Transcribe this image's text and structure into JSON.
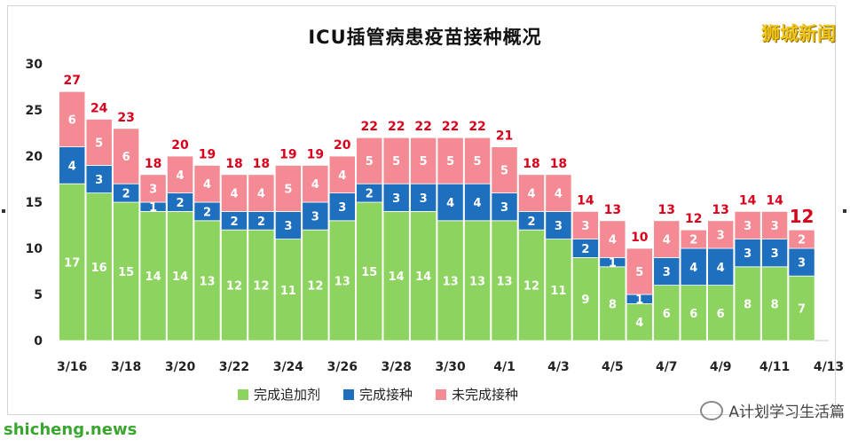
{
  "title": "ICU插管病患疫苗接种概况",
  "brand": "狮城新闻",
  "watermark": "shicheng.news",
  "wechat": "A计划学习生活篇",
  "legend": [
    "完成追加剂",
    "完成接种",
    "未完成接种"
  ],
  "colors": {
    "booster": "#8dd35f",
    "full": "#1f6fbf",
    "incomplete": "#f48a93",
    "total_label": "#d9001b"
  },
  "chart_data": {
    "type": "bar",
    "stacked": true,
    "title": "ICU插管病患疫苗接种概况",
    "x_tick_labels": [
      "3/16",
      "3/18",
      "3/20",
      "3/22",
      "3/24",
      "3/26",
      "3/28",
      "3/30",
      "4/1",
      "4/3",
      "4/5",
      "4/7",
      "4/9",
      "4/11",
      "4/13"
    ],
    "categories": [
      "3/16",
      "3/17",
      "3/18",
      "3/19",
      "3/20",
      "3/21",
      "3/22",
      "3/23",
      "3/24",
      "3/25",
      "3/26",
      "3/27",
      "3/28",
      "3/29",
      "3/30",
      "3/31",
      "4/1",
      "4/2",
      "4/3",
      "4/4",
      "4/5",
      "4/6",
      "4/7",
      "4/8",
      "4/9",
      "4/10",
      "4/11",
      "4/12"
    ],
    "series": [
      {
        "name": "完成追加剂",
        "values": [
          17,
          16,
          15,
          14,
          14,
          13,
          12,
          12,
          11,
          12,
          13,
          15,
          14,
          14,
          13,
          13,
          13,
          12,
          11,
          9,
          8,
          4,
          6,
          6,
          6,
          8,
          8,
          7
        ]
      },
      {
        "name": "完成接种",
        "values": [
          4,
          3,
          2,
          1,
          2,
          2,
          2,
          2,
          3,
          3,
          3,
          2,
          3,
          3,
          4,
          4,
          3,
          2,
          3,
          2,
          1,
          1,
          3,
          4,
          4,
          3,
          3,
          3
        ]
      },
      {
        "name": "未完成接种",
        "values": [
          6,
          5,
          6,
          3,
          4,
          4,
          4,
          4,
          5,
          4,
          4,
          5,
          5,
          5,
          5,
          5,
          5,
          4,
          4,
          3,
          4,
          5,
          4,
          2,
          3,
          3,
          3,
          2
        ]
      }
    ],
    "totals": [
      27,
      24,
      23,
      18,
      20,
      19,
      18,
      18,
      19,
      19,
      20,
      22,
      22,
      22,
      22,
      22,
      21,
      18,
      18,
      14,
      13,
      10,
      13,
      12,
      13,
      14,
      14,
      12
    ],
    "ylim": [
      0,
      30
    ],
    "yticks": [
      0,
      5,
      10,
      15,
      20,
      25,
      30
    ],
    "legend_position": "bottom",
    "grid": false
  }
}
